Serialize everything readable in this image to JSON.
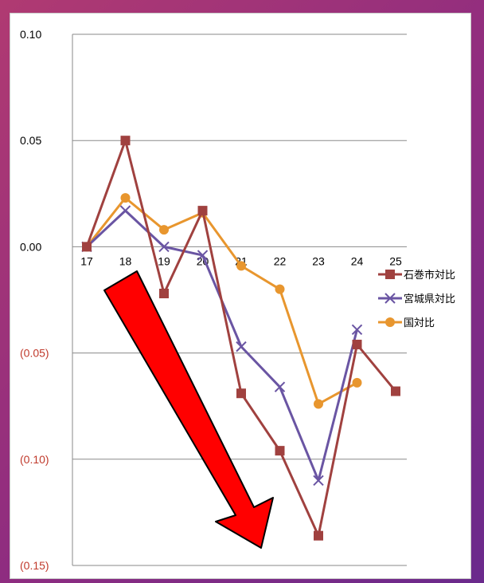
{
  "chart_data": {
    "type": "line",
    "categories": [
      "17",
      "18",
      "19",
      "20",
      "21",
      "22",
      "23",
      "24",
      "25"
    ],
    "ylim": [
      -0.15,
      0.1
    ],
    "y_ticks": [
      {
        "value": 0.1,
        "label": "0.10"
      },
      {
        "value": 0.05,
        "label": "0.05"
      },
      {
        "value": 0.0,
        "label": "0.00"
      },
      {
        "value": -0.05,
        "label": "(0.05)"
      },
      {
        "value": -0.1,
        "label": "(0.10)"
      },
      {
        "value": -0.15,
        "label": "(0.15)"
      }
    ],
    "grid": true,
    "legend_position": "right",
    "series": [
      {
        "name": "石巻市対比",
        "marker": "square",
        "color": "#a0413f",
        "values": [
          0.0,
          0.05,
          -0.022,
          0.017,
          -0.069,
          -0.096,
          -0.136,
          -0.046,
          -0.068
        ]
      },
      {
        "name": "宮城県対比",
        "marker": "x",
        "color": "#6a55a3",
        "values": [
          0.0,
          0.017,
          0.0,
          -0.004,
          -0.047,
          -0.066,
          -0.11,
          -0.039,
          null
        ]
      },
      {
        "name": "国対比",
        "marker": "circle",
        "color": "#e8962e",
        "values": [
          0.0,
          0.023,
          0.008,
          0.016,
          -0.009,
          -0.02,
          -0.074,
          -0.064,
          null
        ]
      }
    ],
    "annotation": {
      "type": "arrow",
      "direction": "down-right",
      "color": "#ff0000"
    }
  },
  "colors": {
    "negative_label": "#c0392b",
    "axis_label": "#000000",
    "gridline": "#8a8a8a",
    "arrow": "#ff0000"
  }
}
